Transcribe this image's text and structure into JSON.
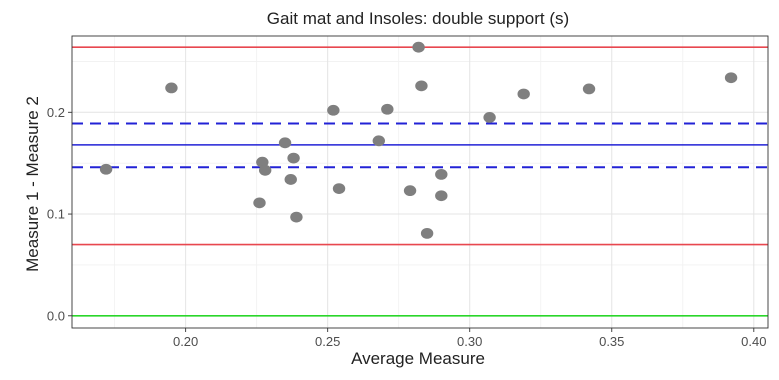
{
  "chart_data": {
    "type": "scatter",
    "title": "Gait mat and Insoles: double support (s)",
    "xlabel": "Average Measure",
    "ylabel": "Measure 1 - Measure 2",
    "xlim": [
      0.16,
      0.405
    ],
    "ylim": [
      -0.012,
      0.275
    ],
    "x_ticks": [
      0.2,
      0.25,
      0.3,
      0.35,
      0.4
    ],
    "x_tick_labels": [
      "0.20",
      "0.25",
      "0.30",
      "0.35",
      "0.40"
    ],
    "y_ticks": [
      0.0,
      0.1,
      0.2
    ],
    "y_tick_labels": [
      "0.0",
      "0.1",
      "0.2"
    ],
    "grid": true,
    "points": [
      {
        "x": 0.172,
        "y": 0.144
      },
      {
        "x": 0.195,
        "y": 0.224
      },
      {
        "x": 0.226,
        "y": 0.111
      },
      {
        "x": 0.227,
        "y": 0.151
      },
      {
        "x": 0.228,
        "y": 0.143
      },
      {
        "x": 0.235,
        "y": 0.17
      },
      {
        "x": 0.237,
        "y": 0.134
      },
      {
        "x": 0.238,
        "y": 0.155
      },
      {
        "x": 0.239,
        "y": 0.097
      },
      {
        "x": 0.252,
        "y": 0.202
      },
      {
        "x": 0.254,
        "y": 0.125
      },
      {
        "x": 0.268,
        "y": 0.172
      },
      {
        "x": 0.271,
        "y": 0.203
      },
      {
        "x": 0.279,
        "y": 0.123
      },
      {
        "x": 0.282,
        "y": 0.264
      },
      {
        "x": 0.283,
        "y": 0.226
      },
      {
        "x": 0.285,
        "y": 0.081
      },
      {
        "x": 0.29,
        "y": 0.139
      },
      {
        "x": 0.29,
        "y": 0.118
      },
      {
        "x": 0.307,
        "y": 0.195
      },
      {
        "x": 0.319,
        "y": 0.218
      },
      {
        "x": 0.342,
        "y": 0.223
      },
      {
        "x": 0.392,
        "y": 0.234
      }
    ],
    "reference_lines": [
      {
        "role": "upper limit of agreement",
        "y": 0.264,
        "color": "#e8474f",
        "style": "solid"
      },
      {
        "role": "upper confidence bound of mean",
        "y": 0.189,
        "color": "#2222d6",
        "style": "dashed"
      },
      {
        "role": "mean difference",
        "y": 0.168,
        "color": "#2222d6",
        "style": "solid"
      },
      {
        "role": "lower confidence bound of mean",
        "y": 0.146,
        "color": "#2222d6",
        "style": "dashed"
      },
      {
        "role": "lower limit of agreement",
        "y": 0.07,
        "color": "#e8474f",
        "style": "solid"
      },
      {
        "role": "zero line",
        "y": 0.0,
        "color": "#2ad62a",
        "style": "solid"
      }
    ],
    "point_color": "#7f7f7f"
  }
}
